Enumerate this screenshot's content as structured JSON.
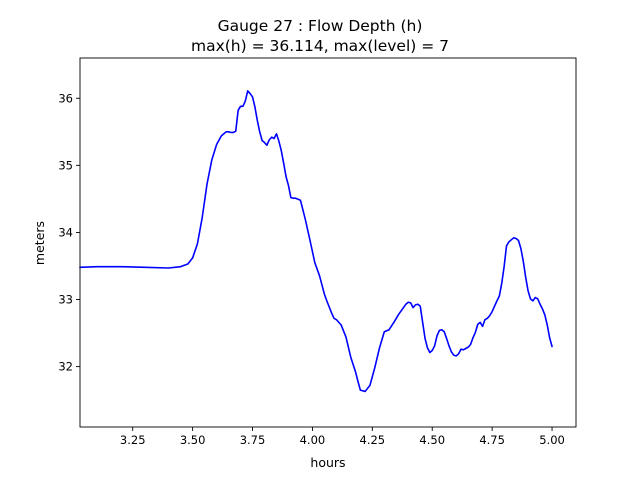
{
  "chart_data": {
    "type": "line",
    "title_line1": "Gauge 27 : Flow Depth (h)",
    "title_line2": "max(h) =  36.114,    max(level) = 7",
    "xlabel": "hours",
    "ylabel": "meters",
    "xlim": [
      3.03,
      5.1
    ],
    "ylim": [
      31.1,
      36.6
    ],
    "xticks": [
      3.25,
      3.5,
      3.75,
      4.0,
      4.25,
      4.5,
      4.75,
      5.0
    ],
    "xtick_labels": [
      "3.25",
      "3.50",
      "3.75",
      "4.00",
      "4.25",
      "4.50",
      "4.75",
      "5.00"
    ],
    "yticks": [
      32,
      33,
      34,
      35,
      36
    ],
    "ytick_labels": [
      "32",
      "33",
      "34",
      "35",
      "36"
    ],
    "grid": false,
    "series": [
      {
        "color": "#0000ff",
        "x": [
          3.03,
          3.1,
          3.2,
          3.3,
          3.4,
          3.45,
          3.48,
          3.5,
          3.52,
          3.54,
          3.56,
          3.58,
          3.6,
          3.62,
          3.64,
          3.65,
          3.66,
          3.67,
          3.68,
          3.69,
          3.7,
          3.71,
          3.72,
          3.73,
          3.74,
          3.75,
          3.76,
          3.77,
          3.78,
          3.79,
          3.8,
          3.81,
          3.82,
          3.83,
          3.84,
          3.85,
          3.86,
          3.87,
          3.88,
          3.89,
          3.9,
          3.91,
          3.92,
          3.93,
          3.95,
          3.97,
          3.99,
          4.01,
          4.03,
          4.05,
          4.06,
          4.08,
          4.09,
          4.1,
          4.12,
          4.14,
          4.16,
          4.18,
          4.19,
          4.2,
          4.22,
          4.24,
          4.26,
          4.28,
          4.3,
          4.32,
          4.34,
          4.36,
          4.38,
          4.39,
          4.4,
          4.41,
          4.42,
          4.43,
          4.44,
          4.45,
          4.46,
          4.47,
          4.48,
          4.49,
          4.5,
          4.51,
          4.52,
          4.53,
          4.54,
          4.55,
          4.56,
          4.57,
          4.58,
          4.59,
          4.6,
          4.61,
          4.62,
          4.63,
          4.64,
          4.65,
          4.66,
          4.67,
          4.68,
          4.69,
          4.7,
          4.71,
          4.72,
          4.73,
          4.74,
          4.75,
          4.76,
          4.77,
          4.78,
          4.79,
          4.8,
          4.81,
          4.82,
          4.83,
          4.84,
          4.85,
          4.86,
          4.87,
          4.88,
          4.89,
          4.9,
          4.91,
          4.92,
          4.93,
          4.94,
          4.95,
          4.96,
          4.97,
          4.98,
          4.99,
          5.0
        ],
        "y": [
          33.48,
          33.49,
          33.49,
          33.48,
          33.47,
          33.49,
          33.53,
          33.62,
          33.83,
          34.22,
          34.72,
          35.08,
          35.31,
          35.44,
          35.5,
          35.5,
          35.49,
          35.49,
          35.51,
          35.82,
          35.88,
          35.88,
          35.96,
          36.11,
          36.07,
          36.02,
          35.87,
          35.67,
          35.5,
          35.37,
          35.34,
          35.3,
          35.38,
          35.42,
          35.4,
          35.47,
          35.36,
          35.22,
          35.03,
          34.83,
          34.7,
          34.52,
          34.51,
          34.51,
          34.48,
          34.2,
          33.88,
          33.55,
          33.35,
          33.08,
          32.98,
          32.8,
          32.72,
          32.7,
          32.62,
          32.44,
          32.14,
          31.92,
          31.78,
          31.65,
          31.63,
          31.72,
          31.98,
          32.28,
          32.52,
          32.55,
          32.66,
          32.78,
          32.88,
          32.93,
          32.96,
          32.95,
          32.88,
          32.92,
          32.93,
          32.9,
          32.66,
          32.42,
          32.28,
          32.21,
          32.24,
          32.31,
          32.46,
          32.54,
          32.55,
          32.52,
          32.42,
          32.31,
          32.22,
          32.17,
          32.16,
          32.19,
          32.26,
          32.25,
          32.27,
          32.29,
          32.33,
          32.43,
          32.51,
          32.63,
          32.66,
          32.6,
          32.7,
          32.72,
          32.76,
          32.82,
          32.9,
          32.98,
          33.05,
          33.24,
          33.49,
          33.8,
          33.86,
          33.89,
          33.92,
          33.91,
          33.88,
          33.76,
          33.57,
          33.33,
          33.13,
          33.01,
          32.98,
          33.03,
          33.01,
          32.93,
          32.86,
          32.77,
          32.62,
          32.43,
          32.3
        ]
      }
    ]
  }
}
